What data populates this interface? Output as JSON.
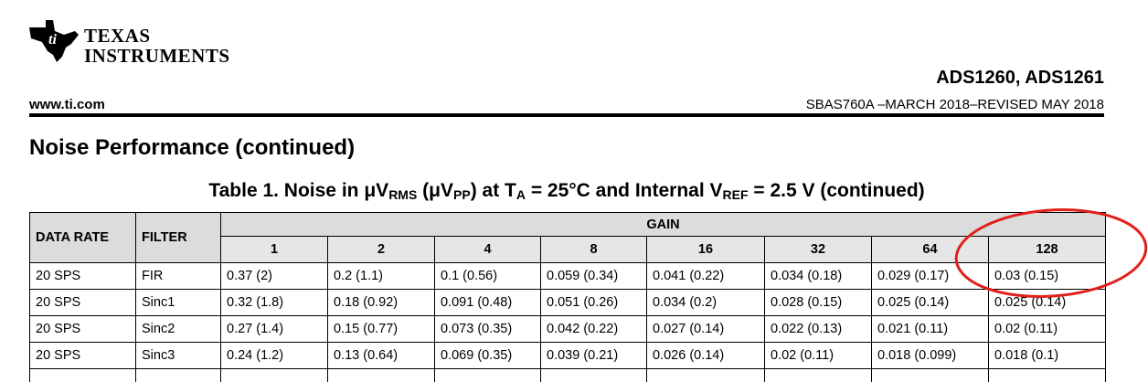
{
  "header": {
    "brand": [
      "Texas",
      "Instruments"
    ],
    "product": "ADS1260, ADS1261",
    "website": "www.ti.com",
    "doc_id": "SBAS760A –MARCH 2018–REVISED MAY 2018"
  },
  "section_title": "Noise Performance (continued)",
  "table": {
    "caption": [
      "Table 1. Noise in μV",
      "RMS",
      " (μV",
      "PP",
      ") at T",
      "A",
      " = 25°C and Internal V",
      "REF",
      " = 2.5 V (continued)"
    ],
    "columns": [
      "DATA RATE",
      "FILTER"
    ],
    "group_header": "GAIN",
    "gains": [
      "1",
      "2",
      "4",
      "8",
      "16",
      "32",
      "64",
      "128"
    ],
    "rows": [
      [
        "20 SPS",
        "FIR",
        "0.37 (2)",
        "0.2 (1.1)",
        "0.1 (0.56)",
        "0.059 (0.34)",
        "0.041 (0.22)",
        "0.034 (0.18)",
        "0.029 (0.17)",
        "0.03 (0.15)"
      ],
      [
        "20 SPS",
        "Sinc1",
        "0.32 (1.8)",
        "0.18 (0.92)",
        "0.091 (0.48)",
        "0.051 (0.26)",
        "0.034 (0.2)",
        "0.028 (0.15)",
        "0.025 (0.14)",
        "0.025 (0.14)"
      ],
      [
        "20 SPS",
        "Sinc2",
        "0.27 (1.4)",
        "0.15 (0.77)",
        "0.073 (0.35)",
        "0.042 (0.22)",
        "0.027 (0.14)",
        "0.022 (0.13)",
        "0.021 (0.11)",
        "0.02 (0.11)"
      ],
      [
        "20 SPS",
        "Sinc3",
        "0.24 (1.2)",
        "0.13 (0.64)",
        "0.069 (0.35)",
        "0.039 (0.21)",
        "0.026 (0.14)",
        "0.02 (0.11)",
        "0.018 (0.099)",
        "0.018 (0.1)"
      ]
    ]
  }
}
